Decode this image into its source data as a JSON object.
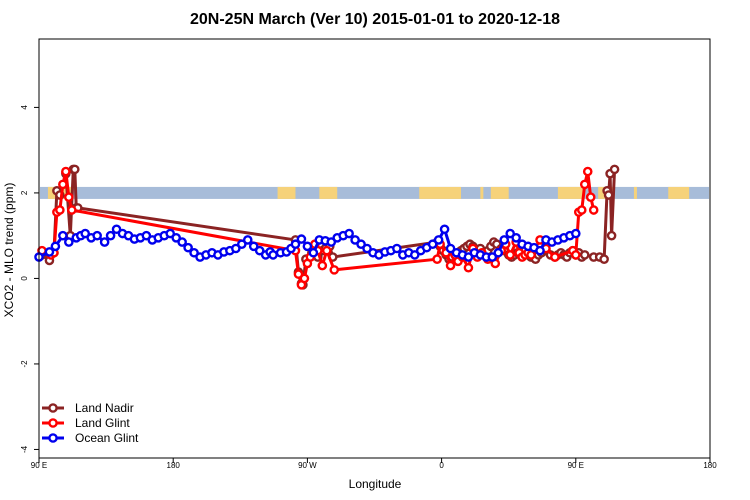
{
  "chart_data": {
    "type": "line",
    "title": "20N-25N March (Ver 10)   2015-01-01 to 2020-12-18",
    "xlabel": "Longitude",
    "ylabel": "XCO2 - MLO trend (ppm)",
    "xlim": [
      90,
      450
    ],
    "ylim": [
      -4.2,
      5.6
    ],
    "x_ticks": [
      {
        "value": 90,
        "label": "90 E"
      },
      {
        "value": 180,
        "label": "180"
      },
      {
        "value": 270,
        "label": "90 W"
      },
      {
        "value": 360,
        "label": "0"
      },
      {
        "value": 450,
        "label": "90 E"
      },
      {
        "value": 540,
        "label": "180"
      }
    ],
    "y_ticks": [
      {
        "value": -4,
        "label": "-4"
      },
      {
        "value": -2,
        "label": "-2"
      },
      {
        "value": 0,
        "label": "0"
      },
      {
        "value": 2,
        "label": "2"
      },
      {
        "value": 4,
        "label": "4"
      }
    ],
    "x_domain": [
      90,
      540
    ],
    "y_domain": [
      -4.2,
      5.6
    ],
    "grid": false,
    "legend_position": "bottom-left",
    "land_band_y": 2,
    "land_band_colors": {
      "ocean": "#a7bcd9",
      "land": "#f6d27a"
    },
    "land_segments": [
      [
        96,
        112
      ],
      [
        250,
        262
      ],
      [
        278,
        290
      ],
      [
        345,
        373
      ],
      [
        386,
        388
      ],
      [
        393,
        405
      ],
      [
        438,
        455
      ],
      [
        465,
        476
      ],
      [
        489,
        491
      ],
      [
        512,
        526
      ]
    ],
    "series": [
      {
        "name": "Land Nadir",
        "color": "#8b2323",
        "x": [
          92,
          97,
          100,
          102,
          104,
          108,
          111,
          113,
          114,
          115,
          116,
          262,
          264,
          266,
          267,
          269,
          273,
          275,
          277,
          280,
          282,
          285,
          287,
          357,
          359,
          361,
          363,
          365,
          367,
          369,
          371,
          373,
          375,
          377,
          379,
          381,
          382,
          384,
          386,
          388,
          391,
          393,
          395,
          397,
          400,
          402,
          405,
          407,
          409,
          411,
          414,
          416,
          418,
          420,
          423,
          425,
          427,
          430,
          433,
          436,
          438,
          440,
          442,
          444,
          446,
          448,
          450,
          452,
          454,
          456,
          462,
          466,
          469,
          471,
          472,
          473,
          474,
          476
        ],
        "y": [
          0.55,
          0.42,
          0.6,
          2.05,
          1.95,
          2.45,
          1.0,
          2.55,
          2.55,
          1.65,
          1.65,
          0.9,
          0.15,
          -0.12,
          -0.15,
          0.45,
          0.6,
          0.55,
          0.5,
          0.65,
          0.7,
          0.75,
          0.5,
          0.85,
          0.75,
          0.65,
          0.55,
          0.45,
          0.5,
          0.55,
          0.6,
          0.65,
          0.7,
          0.75,
          0.8,
          0.75,
          0.7,
          0.6,
          0.7,
          0.6,
          0.65,
          0.75,
          0.85,
          0.8,
          0.7,
          0.65,
          0.55,
          0.5,
          0.55,
          0.6,
          0.7,
          0.65,
          0.55,
          0.5,
          0.45,
          0.55,
          0.6,
          0.65,
          0.55,
          0.5,
          0.55,
          0.6,
          0.55,
          0.5,
          0.6,
          0.65,
          0.55,
          0.6,
          0.5,
          0.55,
          0.5,
          0.5,
          0.45,
          2.05,
          1.95,
          2.45,
          1.0,
          2.55
        ]
      },
      {
        "name": "Land Glint",
        "color": "#ff0000",
        "x": [
          92,
          98,
          100,
          102,
          104,
          106,
          108,
          110,
          112,
          262,
          264,
          266,
          268,
          270,
          272,
          275,
          277,
          280,
          283,
          288,
          357,
          359,
          363,
          366,
          369,
          371,
          374,
          378,
          381,
          384,
          387,
          391,
          396,
          400,
          403,
          406,
          410,
          412,
          414,
          416,
          418,
          420,
          426,
          430,
          436,
          448,
          450,
          452,
          454,
          456,
          458,
          460,
          462
        ],
        "y": [
          0.65,
          0.55,
          0.6,
          1.55,
          1.6,
          2.2,
          2.5,
          1.9,
          1.6,
          0.65,
          0.1,
          -0.15,
          0.0,
          0.35,
          0.5,
          0.8,
          0.65,
          0.3,
          0.65,
          0.2,
          0.45,
          0.8,
          0.6,
          0.3,
          0.55,
          0.4,
          0.5,
          0.25,
          0.7,
          0.5,
          0.6,
          0.45,
          0.35,
          0.65,
          0.8,
          0.55,
          0.85,
          0.6,
          0.5,
          0.55,
          0.6,
          0.55,
          0.9,
          0.7,
          0.5,
          0.65,
          0.55,
          1.55,
          1.6,
          2.2,
          2.5,
          1.9,
          1.6
        ]
      },
      {
        "name": "Ocean Glint",
        "color": "#0000ee",
        "x": [
          90,
          97,
          101,
          106,
          110,
          115,
          118,
          121,
          125,
          129,
          134,
          138,
          142,
          146,
          150,
          154,
          158,
          162,
          166,
          170,
          174,
          178,
          182,
          186,
          190,
          194,
          198,
          202,
          206,
          210,
          214,
          218,
          222,
          226,
          230,
          234,
          238,
          242,
          245,
          247,
          252,
          256,
          259,
          262,
          266,
          270,
          274,
          278,
          282,
          286,
          290,
          294,
          298,
          302,
          306,
          310,
          314,
          318,
          322,
          326,
          330,
          334,
          338,
          342,
          346,
          350,
          354,
          358,
          362,
          366,
          370,
          374,
          378,
          382,
          386,
          390,
          394,
          398,
          402,
          406,
          410,
          414,
          418,
          422,
          426,
          430,
          434,
          438,
          442,
          446,
          450
        ],
        "y": [
          0.5,
          0.62,
          0.75,
          1.0,
          0.85,
          0.95,
          1.0,
          1.05,
          0.95,
          1.0,
          0.85,
          1.0,
          1.15,
          1.05,
          1.0,
          0.92,
          0.95,
          1.0,
          0.9,
          0.95,
          1.0,
          1.05,
          0.95,
          0.85,
          0.72,
          0.6,
          0.5,
          0.55,
          0.6,
          0.55,
          0.62,
          0.65,
          0.7,
          0.8,
          0.9,
          0.75,
          0.65,
          0.55,
          0.62,
          0.55,
          0.6,
          0.62,
          0.7,
          0.8,
          0.92,
          0.75,
          0.6,
          0.9,
          0.88,
          0.85,
          0.95,
          1.0,
          1.05,
          0.9,
          0.8,
          0.7,
          0.6,
          0.55,
          0.62,
          0.65,
          0.7,
          0.55,
          0.6,
          0.55,
          0.65,
          0.72,
          0.8,
          0.9,
          1.15,
          0.7,
          0.6,
          0.55,
          0.5,
          0.6,
          0.55,
          0.5,
          0.5,
          0.6,
          0.9,
          1.05,
          0.95,
          0.8,
          0.75,
          0.72,
          0.65,
          0.9,
          0.85,
          0.9,
          0.95,
          1.0,
          1.05
        ]
      }
    ]
  }
}
